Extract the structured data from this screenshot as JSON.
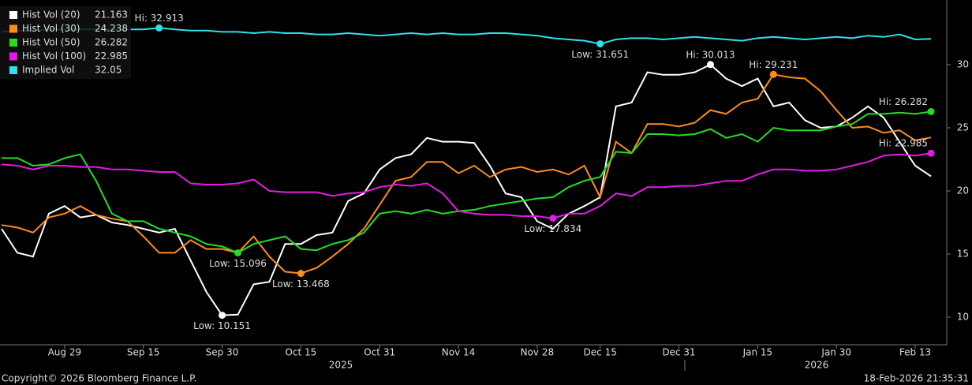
{
  "chart_data": {
    "type": "line",
    "categories": [
      null,
      null,
      null,
      null,
      "Aug 29",
      null,
      null,
      null,
      null,
      "Sep 15",
      null,
      null,
      null,
      null,
      "Sep 30",
      null,
      null,
      null,
      null,
      "Oct 15",
      null,
      null,
      null,
      null,
      "Oct 31",
      null,
      null,
      null,
      null,
      "Nov 14",
      null,
      null,
      null,
      null,
      "Nov 28",
      null,
      null,
      null,
      "Dec 15",
      null,
      null,
      null,
      null,
      "Dec 31",
      null,
      null,
      null,
      null,
      "Jan 15",
      null,
      null,
      null,
      null,
      "Jan 30",
      null,
      null,
      null,
      null,
      "Feb 13",
      null
    ],
    "years": [
      "2025",
      "2026"
    ],
    "ylim": [
      7.8125,
      35.125
    ],
    "yticks": [
      10,
      15,
      20,
      25,
      30
    ],
    "series": [
      {
        "name": "Hist Vol (20)",
        "color": "#ffffff",
        "hi_label": "Hi: 30.013",
        "low_label": "Low: 10.151",
        "values": [
          17.0,
          15.1,
          14.8,
          18.2,
          18.8,
          17.9,
          18.1,
          17.5,
          17.3,
          17.0,
          16.7,
          17.0,
          14.5,
          12.0,
          10.151,
          10.2,
          12.6,
          12.8,
          15.8,
          15.8,
          16.5,
          16.7,
          19.2,
          19.8,
          21.7,
          22.6,
          22.9,
          24.2,
          23.9,
          23.9,
          23.8,
          22.0,
          19.8,
          19.5,
          17.6,
          17.0,
          18.2,
          18.8,
          19.5,
          26.7,
          27.0,
          29.4,
          29.2,
          29.2,
          29.4,
          30.013,
          28.9,
          28.3,
          28.9,
          26.7,
          27.0,
          25.6,
          25.0,
          25.1,
          25.8,
          26.7,
          25.8,
          23.9,
          22.0,
          21.163
        ]
      },
      {
        "name": "Hist Vol (30)",
        "color": "#ff8c1a",
        "hi_label": "Hi: 29.231",
        "low_label": "Low: 13.468",
        "values": [
          17.3,
          17.1,
          16.7,
          17.9,
          18.2,
          18.8,
          18.1,
          17.8,
          17.6,
          16.4,
          15.1,
          15.1,
          16.1,
          15.4,
          15.4,
          15.1,
          16.4,
          14.8,
          13.6,
          13.468,
          13.9,
          14.8,
          15.8,
          17.0,
          18.9,
          20.8,
          21.1,
          22.3,
          22.3,
          21.4,
          22.0,
          21.1,
          21.7,
          21.9,
          21.5,
          21.7,
          21.3,
          22.0,
          19.5,
          23.9,
          23.0,
          25.3,
          25.3,
          25.1,
          25.4,
          26.4,
          26.1,
          27.0,
          27.3,
          29.231,
          29.0,
          28.9,
          27.9,
          26.4,
          25.0,
          25.1,
          24.6,
          24.8,
          24.0,
          24.238
        ]
      },
      {
        "name": "Hist Vol (50)",
        "color": "#22dd22",
        "hi_label": "Hi: 26.282",
        "low_label": "Low: 15.096",
        "values": [
          22.6,
          22.6,
          22.0,
          22.1,
          22.6,
          22.9,
          20.8,
          18.2,
          17.6,
          17.6,
          17.0,
          16.7,
          16.4,
          15.8,
          15.6,
          15.096,
          15.8,
          16.1,
          16.4,
          15.4,
          15.3,
          15.8,
          16.1,
          16.7,
          18.2,
          18.4,
          18.2,
          18.5,
          18.2,
          18.4,
          18.5,
          18.8,
          19.0,
          19.2,
          19.4,
          19.5,
          20.3,
          20.8,
          21.1,
          23.1,
          23.0,
          24.5,
          24.5,
          24.4,
          24.5,
          24.9,
          24.2,
          24.5,
          23.9,
          25.0,
          24.8,
          24.8,
          24.8,
          25.1,
          25.3,
          26.1,
          26.1,
          26.2,
          26.1,
          26.282
        ]
      },
      {
        "name": "Hist Vol (100)",
        "color": "#e619e6",
        "hi_label": "Hi: 22.985",
        "low_label": "Low: 17.834",
        "values": [
          22.1,
          22.0,
          21.7,
          22.0,
          22.0,
          21.9,
          21.9,
          21.7,
          21.7,
          21.6,
          21.5,
          21.5,
          20.6,
          20.5,
          20.5,
          20.6,
          20.9,
          20.0,
          19.9,
          19.9,
          19.9,
          19.6,
          19.8,
          19.9,
          20.3,
          20.5,
          20.4,
          20.6,
          19.8,
          18.4,
          18.2,
          18.1,
          18.1,
          18.0,
          18.0,
          17.834,
          18.2,
          18.2,
          18.8,
          19.8,
          19.6,
          20.3,
          20.3,
          20.4,
          20.4,
          20.6,
          20.8,
          20.8,
          21.3,
          21.7,
          21.7,
          21.6,
          21.6,
          21.7,
          22.0,
          22.3,
          22.8,
          22.9,
          22.8,
          22.985
        ]
      },
      {
        "name": "Implied Vol",
        "color": "#2ee0e8",
        "hi_label": "Hi: 32.913",
        "low_label": "Low: 31.651",
        "values": [
          32.6,
          32.7,
          32.7,
          32.8,
          32.8,
          32.8,
          32.8,
          32.8,
          32.8,
          32.8,
          32.913,
          32.8,
          32.7,
          32.7,
          32.6,
          32.6,
          32.5,
          32.6,
          32.5,
          32.5,
          32.4,
          32.4,
          32.5,
          32.4,
          32.3,
          32.4,
          32.5,
          32.4,
          32.5,
          32.4,
          32.4,
          32.5,
          32.5,
          32.4,
          32.3,
          32.1,
          32.0,
          31.9,
          31.651,
          32.0,
          32.1,
          32.1,
          32.0,
          32.1,
          32.2,
          32.1,
          32.0,
          31.9,
          32.1,
          32.2,
          32.1,
          32.0,
          32.1,
          32.2,
          32.1,
          32.3,
          32.2,
          32.4,
          32.0,
          32.05
        ]
      }
    ]
  },
  "footer": {
    "copyright": "Copyright© 2026 Bloomberg Finance L.P.",
    "timestamp": "18-Feb-2026 21:35:31"
  }
}
